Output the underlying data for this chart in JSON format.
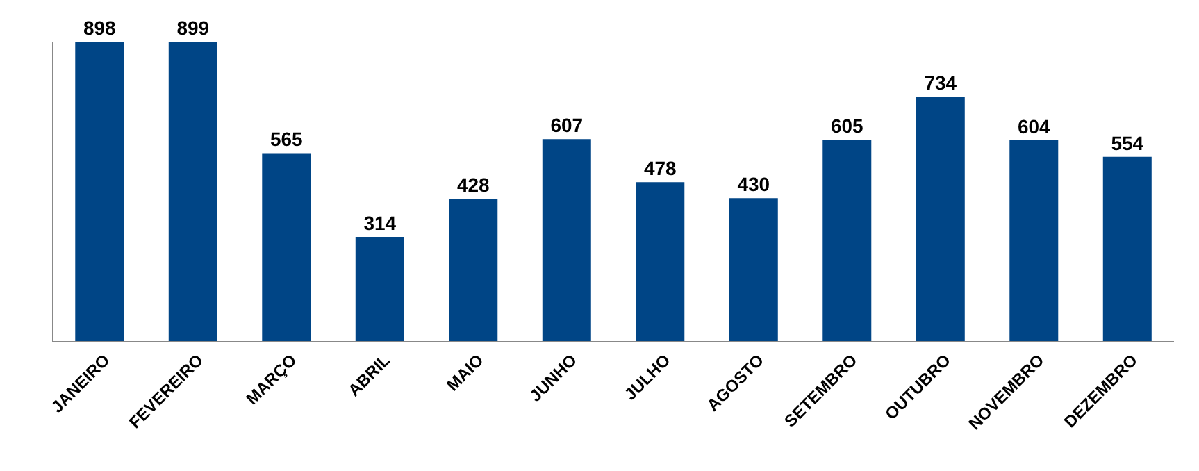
{
  "chart_data": {
    "type": "bar",
    "categories": [
      "JANEIRO",
      "FEVEREIRO",
      "MARÇO",
      "ABRIL",
      "MAIO",
      "JUNHO",
      "JULHO",
      "AGOSTO",
      "SETEMBRO",
      "OUTUBRO",
      "NOVEMBRO",
      "DEZEMBRO"
    ],
    "values": [
      898,
      899,
      565,
      314,
      428,
      607,
      478,
      430,
      605,
      734,
      604,
      554
    ],
    "color": "#004586",
    "data_labels": true
  }
}
